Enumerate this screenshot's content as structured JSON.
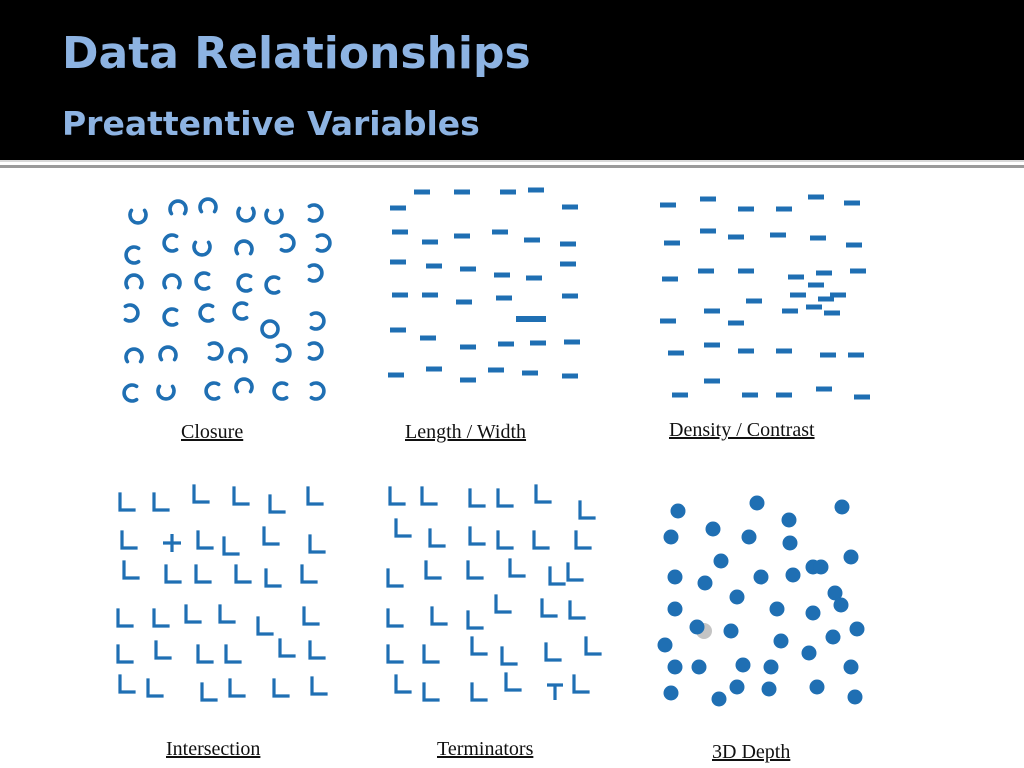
{
  "slide": {
    "title": "Data Relationships",
    "subtitle": "Preattentive Variables",
    "mark_color": "#1f6fb3",
    "title_color": "#8db3e2"
  },
  "panels": [
    {
      "id": "closure",
      "caption": "Closure"
    },
    {
      "id": "length-width",
      "caption": "Length / Width"
    },
    {
      "id": "density-contrast",
      "caption": "Density / Contrast"
    },
    {
      "id": "intersection",
      "caption": "Intersection"
    },
    {
      "id": "terminators",
      "caption": "Terminators"
    },
    {
      "id": "3d-depth",
      "caption": "3D Depth"
    }
  ]
}
